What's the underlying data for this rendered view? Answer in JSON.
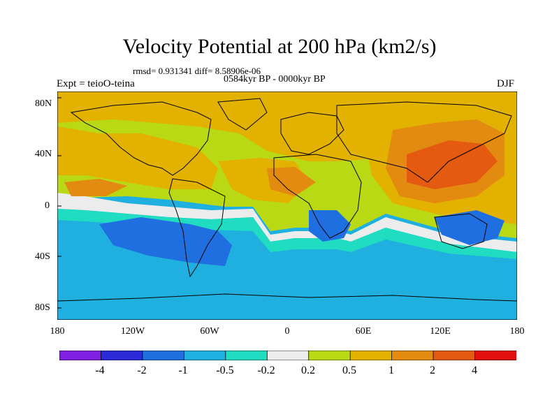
{
  "header": {
    "title": "Velocity Potential at 200 hPa (km2/s)",
    "stats": "rmsd= 0.931341 diff= 8.58906e-06",
    "period": "0584kyr BP - 0000kyr BP",
    "experiment": "Expt = teioO-teina",
    "season": "DJF"
  },
  "axes": {
    "lat_ticks": [
      "80N",
      "40N",
      "0",
      "40S",
      "80S"
    ],
    "lon_ticks": [
      "180",
      "120W",
      "60W",
      "0",
      "60E",
      "120E",
      "180"
    ]
  },
  "colorbar": {
    "labels": [
      "-4",
      "-2",
      "-1",
      "-0.5",
      "-0.2",
      "0.2",
      "0.5",
      "1",
      "2",
      "4"
    ],
    "colors": [
      "#7f1fe0",
      "#2a2ad8",
      "#1f6fe0",
      "#1fb0e0",
      "#20dcc0",
      "#ececec",
      "#b9d914",
      "#e3b200",
      "#e38a10",
      "#e35a10",
      "#e31010"
    ]
  },
  "map_colors": {
    "ocean_bg": "#1fb0e0",
    "land_outline": "#000000"
  }
}
